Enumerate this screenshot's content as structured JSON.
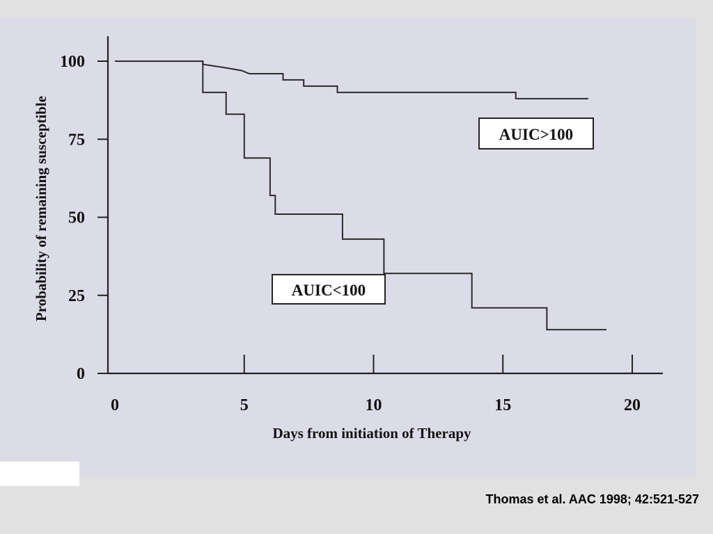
{
  "citation": "Thomas et al. AAC 1998; 42:521-527",
  "chart_data": {
    "type": "line",
    "step": true,
    "title": "",
    "xlabel": "Days from initiation of Therapy",
    "ylabel": "Probability of remaining susceptible",
    "xlim": [
      0,
      20
    ],
    "ylim": [
      0,
      100
    ],
    "x_ticks": [
      0,
      5,
      10,
      15,
      20
    ],
    "y_ticks": [
      0,
      25,
      50,
      75,
      100
    ],
    "grid": false,
    "series": [
      {
        "name": "AUIC>100",
        "points": [
          [
            0,
            100
          ],
          [
            3.4,
            100
          ],
          [
            3.4,
            99
          ],
          [
            4.2,
            98
          ],
          [
            4.9,
            97
          ],
          [
            5.2,
            96
          ],
          [
            5.5,
            96
          ],
          [
            6.5,
            96
          ],
          [
            6.5,
            94
          ],
          [
            7.3,
            94
          ],
          [
            7.3,
            92
          ],
          [
            8.6,
            92
          ],
          [
            8.6,
            90
          ],
          [
            10,
            90
          ],
          [
            15.5,
            90
          ],
          [
            15.5,
            88
          ],
          [
            18.3,
            88
          ]
        ]
      },
      {
        "name": "AUIC<100",
        "points": [
          [
            0,
            100
          ],
          [
            3.4,
            100
          ],
          [
            3.4,
            90
          ],
          [
            4.3,
            90
          ],
          [
            4.3,
            83
          ],
          [
            5.0,
            83
          ],
          [
            5.0,
            69
          ],
          [
            6.0,
            69
          ],
          [
            6.0,
            57
          ],
          [
            6.2,
            57
          ],
          [
            6.2,
            51
          ],
          [
            8.8,
            51
          ],
          [
            8.8,
            43
          ],
          [
            10.4,
            43
          ],
          [
            10.4,
            32
          ],
          [
            13.8,
            32
          ],
          [
            13.8,
            21
          ],
          [
            16.7,
            21
          ],
          [
            16.7,
            14
          ],
          [
            19.0,
            14
          ]
        ]
      }
    ],
    "legend_boxes": [
      {
        "text": "AUIC>100",
        "placement": "upper-right, below AUIC>100 curve"
      },
      {
        "text": "AUIC<100",
        "placement": "center, below AUIC<100 curve"
      }
    ]
  }
}
